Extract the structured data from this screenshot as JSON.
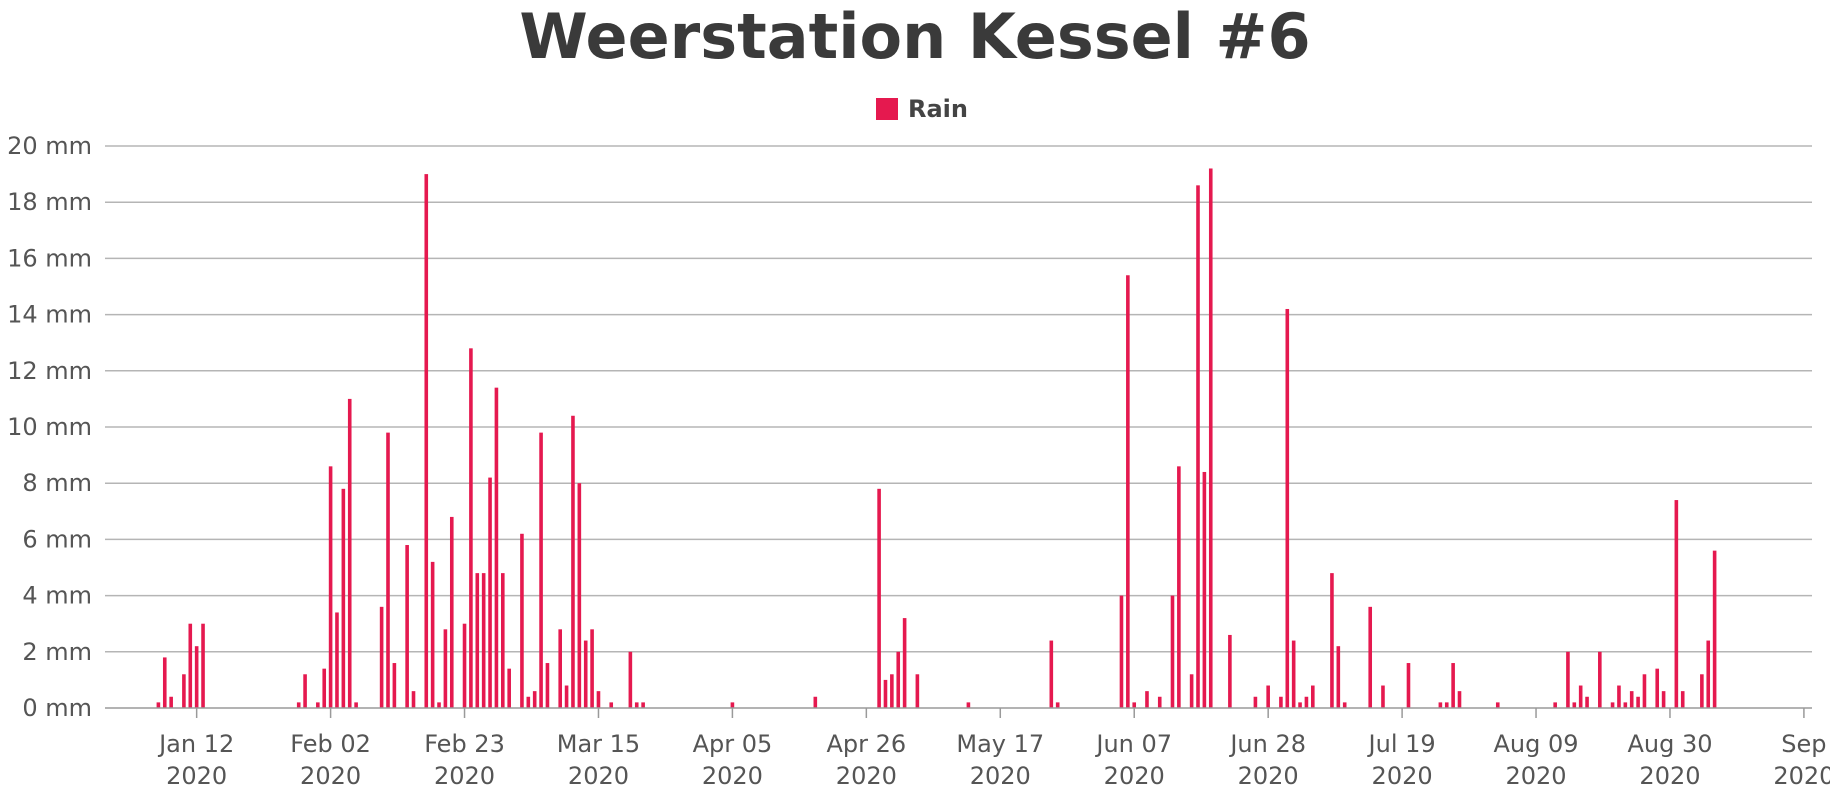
{
  "colors": {
    "rain": "#e5194f",
    "grid": "#b5b5b5",
    "text": "#555555"
  },
  "chart_data": {
    "type": "bar",
    "title": "Weerstation Kessel #6",
    "legend": {
      "position": "top-center",
      "entries": [
        "Rain"
      ]
    },
    "grid": true,
    "y_unit": "mm",
    "ylim": [
      0,
      20
    ],
    "y_ticks": [
      {
        "value": 0,
        "label": "0 mm"
      },
      {
        "value": 2,
        "label": "2 mm"
      },
      {
        "value": 4,
        "label": "4 mm"
      },
      {
        "value": 6,
        "label": "6 mm"
      },
      {
        "value": 8,
        "label": "8 mm"
      },
      {
        "value": 10,
        "label": "10 mm"
      },
      {
        "value": 12,
        "label": "12 mm"
      },
      {
        "value": 14,
        "label": "14 mm"
      },
      {
        "value": 16,
        "label": "16 mm"
      },
      {
        "value": 18,
        "label": "18 mm"
      },
      {
        "value": 20,
        "label": "20 mm"
      }
    ],
    "xlim": [
      "2020-01-01",
      "2020-09-20"
    ],
    "x_ticks": [
      {
        "date": "2020-01-12",
        "line1": "Jan 12",
        "line2": "2020"
      },
      {
        "date": "2020-02-02",
        "line1": "Feb 02",
        "line2": "2020"
      },
      {
        "date": "2020-02-23",
        "line1": "Feb 23",
        "line2": "2020"
      },
      {
        "date": "2020-03-15",
        "line1": "Mar 15",
        "line2": "2020"
      },
      {
        "date": "2020-04-05",
        "line1": "Apr 05",
        "line2": "2020"
      },
      {
        "date": "2020-04-26",
        "line1": "Apr 26",
        "line2": "2020"
      },
      {
        "date": "2020-05-17",
        "line1": "May 17",
        "line2": "2020"
      },
      {
        "date": "2020-06-07",
        "line1": "Jun 07",
        "line2": "2020"
      },
      {
        "date": "2020-06-28",
        "line1": "Jun 28",
        "line2": "2020"
      },
      {
        "date": "2020-07-19",
        "line1": "Jul 19",
        "line2": "2020"
      },
      {
        "date": "2020-08-09",
        "line1": "Aug 09",
        "line2": "2020"
      },
      {
        "date": "2020-08-30",
        "line1": "Aug 30",
        "line2": "2020"
      },
      {
        "date": "2020-09-20",
        "line1": "Sep",
        "line2": "2020"
      }
    ],
    "series": [
      {
        "name": "Rain",
        "points": [
          [
            "2020-01-06",
            0.2
          ],
          [
            "2020-01-07",
            1.8
          ],
          [
            "2020-01-08",
            0.4
          ],
          [
            "2020-01-10",
            1.2
          ],
          [
            "2020-01-11",
            3.0
          ],
          [
            "2020-01-12",
            2.2
          ],
          [
            "2020-01-13",
            3.0
          ],
          [
            "2020-01-28",
            0.2
          ],
          [
            "2020-01-29",
            1.2
          ],
          [
            "2020-01-31",
            0.2
          ],
          [
            "2020-02-01",
            1.4
          ],
          [
            "2020-02-02",
            8.6
          ],
          [
            "2020-02-03",
            3.4
          ],
          [
            "2020-02-04",
            7.8
          ],
          [
            "2020-02-05",
            11.0
          ],
          [
            "2020-02-06",
            0.2
          ],
          [
            "2020-02-10",
            3.6
          ],
          [
            "2020-02-11",
            9.8
          ],
          [
            "2020-02-12",
            1.6
          ],
          [
            "2020-02-14",
            5.8
          ],
          [
            "2020-02-15",
            0.6
          ],
          [
            "2020-02-17",
            19.0
          ],
          [
            "2020-02-18",
            5.2
          ],
          [
            "2020-02-19",
            0.2
          ],
          [
            "2020-02-20",
            2.8
          ],
          [
            "2020-02-21",
            6.8
          ],
          [
            "2020-02-23",
            3.0
          ],
          [
            "2020-02-24",
            12.8
          ],
          [
            "2020-02-25",
            4.8
          ],
          [
            "2020-02-26",
            4.8
          ],
          [
            "2020-02-27",
            8.2
          ],
          [
            "2020-02-28",
            11.4
          ],
          [
            "2020-02-29",
            4.8
          ],
          [
            "2020-03-01",
            1.4
          ],
          [
            "2020-03-03",
            6.2
          ],
          [
            "2020-03-04",
            0.4
          ],
          [
            "2020-03-05",
            0.6
          ],
          [
            "2020-03-06",
            9.8
          ],
          [
            "2020-03-07",
            1.6
          ],
          [
            "2020-03-09",
            2.8
          ],
          [
            "2020-03-10",
            0.8
          ],
          [
            "2020-03-11",
            10.4
          ],
          [
            "2020-03-12",
            8.0
          ],
          [
            "2020-03-13",
            2.4
          ],
          [
            "2020-03-14",
            2.8
          ],
          [
            "2020-03-15",
            0.6
          ],
          [
            "2020-03-17",
            0.2
          ],
          [
            "2020-03-20",
            2.0
          ],
          [
            "2020-03-21",
            0.2
          ],
          [
            "2020-03-22",
            0.2
          ],
          [
            "2020-04-05",
            0.2
          ],
          [
            "2020-04-18",
            0.4
          ],
          [
            "2020-04-28",
            7.8
          ],
          [
            "2020-04-29",
            1.0
          ],
          [
            "2020-04-30",
            1.2
          ],
          [
            "2020-05-01",
            2.0
          ],
          [
            "2020-05-02",
            3.2
          ],
          [
            "2020-05-04",
            1.2
          ],
          [
            "2020-05-12",
            0.2
          ],
          [
            "2020-05-25",
            2.4
          ],
          [
            "2020-05-26",
            0.2
          ],
          [
            "2020-06-05",
            4.0
          ],
          [
            "2020-06-06",
            15.4
          ],
          [
            "2020-06-07",
            0.2
          ],
          [
            "2020-06-09",
            0.6
          ],
          [
            "2020-06-11",
            0.4
          ],
          [
            "2020-06-13",
            4.0
          ],
          [
            "2020-06-14",
            8.6
          ],
          [
            "2020-06-16",
            1.2
          ],
          [
            "2020-06-17",
            18.6
          ],
          [
            "2020-06-18",
            8.4
          ],
          [
            "2020-06-19",
            19.2
          ],
          [
            "2020-06-22",
            2.6
          ],
          [
            "2020-06-26",
            0.4
          ],
          [
            "2020-06-28",
            0.8
          ],
          [
            "2020-06-30",
            0.4
          ],
          [
            "2020-07-01",
            14.2
          ],
          [
            "2020-07-02",
            2.4
          ],
          [
            "2020-07-03",
            0.2
          ],
          [
            "2020-07-04",
            0.4
          ],
          [
            "2020-07-05",
            0.8
          ],
          [
            "2020-07-08",
            4.8
          ],
          [
            "2020-07-09",
            2.2
          ],
          [
            "2020-07-10",
            0.2
          ],
          [
            "2020-07-14",
            3.6
          ],
          [
            "2020-07-16",
            0.8
          ],
          [
            "2020-07-20",
            1.6
          ],
          [
            "2020-07-25",
            0.2
          ],
          [
            "2020-07-26",
            0.2
          ],
          [
            "2020-07-27",
            1.6
          ],
          [
            "2020-07-28",
            0.6
          ],
          [
            "2020-08-03",
            0.2
          ],
          [
            "2020-08-12",
            0.2
          ],
          [
            "2020-08-14",
            2.0
          ],
          [
            "2020-08-15",
            0.2
          ],
          [
            "2020-08-16",
            0.8
          ],
          [
            "2020-08-17",
            0.4
          ],
          [
            "2020-08-19",
            2.0
          ],
          [
            "2020-08-21",
            0.2
          ],
          [
            "2020-08-22",
            0.8
          ],
          [
            "2020-08-23",
            0.2
          ],
          [
            "2020-08-24",
            0.6
          ],
          [
            "2020-08-25",
            0.4
          ],
          [
            "2020-08-26",
            1.2
          ],
          [
            "2020-08-28",
            1.4
          ],
          [
            "2020-08-29",
            0.6
          ],
          [
            "2020-08-31",
            7.4
          ],
          [
            "2020-09-01",
            0.6
          ],
          [
            "2020-09-04",
            1.2
          ],
          [
            "2020-09-05",
            2.4
          ],
          [
            "2020-09-06",
            5.6
          ]
        ]
      }
    ]
  }
}
